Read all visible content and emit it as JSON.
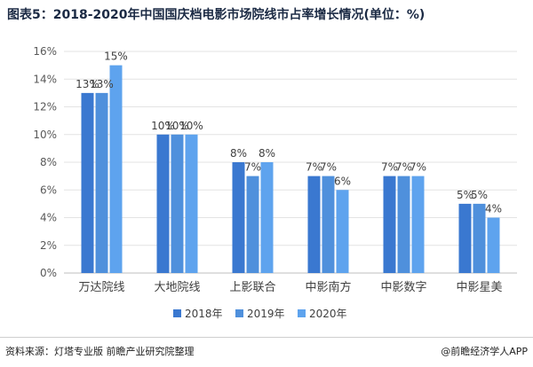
{
  "title": "图表5：2018-2020年中国国庆档电影市场院线市占率增长情况(单位：%)",
  "footer": {
    "source": "资料来源：灯塔专业版  前瞻产业研究院整理",
    "brand": "@前瞻经济学人APP"
  },
  "chart_data": {
    "type": "bar",
    "title": "图表5：2018-2020年中国国庆档电影市场院线市占率增长情况(单位：%)",
    "categories": [
      "万达院线",
      "大地院线",
      "上影联合",
      "中影南方",
      "中影数字",
      "中影星美"
    ],
    "series": [
      {
        "name": "2018年",
        "values": [
          13,
          10,
          8,
          7,
          7,
          5
        ],
        "labels": [
          "13%",
          "10%",
          "8%",
          "7%",
          "7%",
          "5%"
        ]
      },
      {
        "name": "2019年",
        "values": [
          13,
          10,
          7,
          7,
          7,
          5
        ],
        "labels": [
          "13%",
          "10%",
          "7%",
          "7%",
          "7%",
          "5%"
        ]
      },
      {
        "name": "2020年",
        "values": [
          15,
          10,
          8,
          6,
          7,
          4
        ],
        "labels": [
          "15%",
          "10%",
          "8%",
          "6%",
          "7%",
          "4%"
        ]
      }
    ],
    "ylim": [
      0,
      16
    ],
    "yticks": [
      0,
      2,
      4,
      6,
      8,
      10,
      12,
      14,
      16
    ],
    "ytick_labels": [
      "0%",
      "2%",
      "4%",
      "6%",
      "8%",
      "10%",
      "12%",
      "14%",
      "16%"
    ],
    "colors": [
      "#3a78d0",
      "#4f90dc",
      "#5ea3ee"
    ],
    "grid": true,
    "legend": "bottom"
  }
}
